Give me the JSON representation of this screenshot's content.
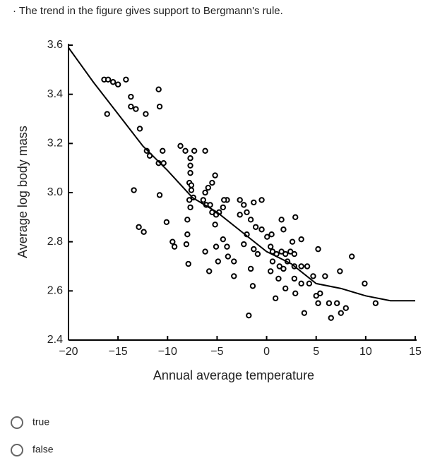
{
  "question": "· The trend in the figure gives support to Bergmann's rule.",
  "chart_data": {
    "type": "scatter",
    "xlabel": "Annual average temperature",
    "ylabel": "Average log body mass",
    "xlim": [
      -20,
      15
    ],
    "ylim": [
      2.4,
      3.6
    ],
    "xticks": [
      {
        "value": -20,
        "label": "−20"
      },
      {
        "value": -15,
        "label": "−15"
      },
      {
        "value": -10,
        "label": "−10"
      },
      {
        "value": -5,
        "label": "−5"
      },
      0,
      5,
      10,
      15
    ],
    "yticks": [
      2.4,
      2.6,
      2.8,
      {
        "value": 3,
        "label": "3.0"
      },
      3.2,
      3.4,
      3.6
    ],
    "series": [
      {
        "type": "scatter",
        "color": "#000000",
        "x": [
          -16.4,
          -16.0,
          -15.5,
          -15.0,
          -14.2,
          -16.1,
          -13.7,
          -13.7,
          -13.2,
          -12.2,
          -12.8,
          -10.9,
          -10.8,
          -12.1,
          -11.8,
          -10.9,
          -10.4,
          -10.5,
          -13.4,
          -10.8,
          -12.9,
          -12.4,
          -10.1,
          -9.5,
          -9.3,
          -8.7,
          -8.2,
          -7.3,
          -6.2,
          -7.7,
          -7.7,
          -7.7,
          -7.8,
          -7.6,
          -7.6,
          -7.4,
          -7.8,
          -7.7,
          -8.0,
          -8.0,
          -8.1,
          -7.9,
          -6.4,
          -6.1,
          -6.2,
          -5.9,
          -5.5,
          -5.2,
          -5.7,
          -5.5,
          -5.1,
          -4.8,
          -4.4,
          -4.0,
          -4.3,
          -5.2,
          -4.4,
          -5.1,
          -6.2,
          -5.8,
          -4.9,
          -3.9,
          -4.0,
          -3.3,
          -3.3,
          -2.7,
          -2.3,
          -2.0,
          -1.6,
          -1.1,
          -0.5,
          0.05,
          0.5,
          -1.3,
          -0.5,
          -2.7,
          -2.0,
          -2.3,
          -1.3,
          -0.9,
          -1.6,
          -1.4,
          -1.8,
          0.4,
          0.6,
          1.0,
          1.5,
          1.9,
          2.4,
          2.8,
          0.6,
          1.3,
          1.7,
          2.1,
          2.8,
          3.5,
          4.1,
          1.5,
          1.7,
          2.9,
          2.6,
          3.5,
          0.4,
          1.2,
          2.8,
          3.5,
          1.9,
          0.9,
          2.9,
          3.8,
          4.3,
          4.7,
          5.2,
          5.9,
          5.0,
          5.2,
          5.4,
          6.3,
          6.5,
          7.1,
          7.5,
          8.0,
          7.4,
          8.6,
          9.9,
          11.0
        ],
        "y": [
          3.46,
          3.46,
          3.45,
          3.44,
          3.46,
          3.32,
          3.39,
          3.35,
          3.34,
          3.32,
          3.26,
          3.42,
          3.35,
          3.17,
          3.15,
          3.12,
          3.12,
          3.17,
          3.01,
          2.99,
          2.86,
          2.84,
          2.88,
          2.8,
          2.78,
          3.19,
          3.17,
          3.17,
          3.17,
          3.14,
          3.11,
          3.08,
          3.04,
          3.03,
          3.01,
          2.98,
          2.97,
          2.94,
          2.89,
          2.83,
          2.79,
          2.71,
          2.97,
          2.95,
          3.0,
          3.02,
          3.04,
          3.07,
          2.95,
          2.92,
          2.91,
          2.92,
          2.94,
          2.97,
          2.97,
          2.87,
          2.81,
          2.78,
          2.76,
          2.68,
          2.72,
          2.74,
          2.78,
          2.72,
          2.66,
          2.97,
          2.95,
          2.92,
          2.89,
          2.86,
          2.85,
          2.82,
          2.83,
          2.96,
          2.97,
          2.91,
          2.83,
          2.79,
          2.77,
          2.75,
          2.69,
          2.62,
          2.5,
          2.78,
          2.76,
          2.75,
          2.76,
          2.75,
          2.76,
          2.75,
          2.72,
          2.7,
          2.69,
          2.72,
          2.7,
          2.7,
          2.7,
          2.89,
          2.85,
          2.9,
          2.8,
          2.81,
          2.68,
          2.65,
          2.65,
          2.63,
          2.61,
          2.57,
          2.59,
          2.51,
          2.63,
          2.66,
          2.77,
          2.66,
          2.58,
          2.55,
          2.59,
          2.55,
          2.49,
          2.55,
          2.51,
          2.53,
          2.68,
          2.74,
          2.63,
          2.55
        ]
      },
      {
        "type": "line",
        "color": "#000000",
        "x": [
          -20,
          -17.5,
          -15,
          -12.5,
          -10,
          -7.5,
          -5,
          -2.5,
          0,
          2.5,
          5,
          7.5,
          10,
          12.5,
          15
        ],
        "y": [
          3.59,
          3.45,
          3.32,
          3.19,
          3.09,
          2.98,
          2.92,
          2.84,
          2.76,
          2.71,
          2.63,
          2.61,
          2.58,
          2.56,
          2.56
        ]
      }
    ]
  },
  "options": [
    "true",
    "false"
  ]
}
